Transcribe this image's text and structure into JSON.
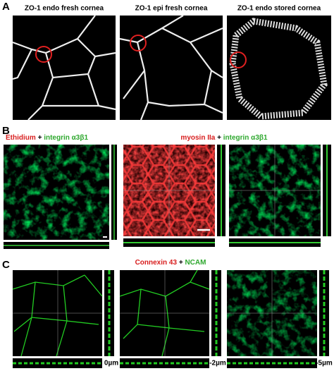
{
  "panel_a": {
    "label": "A",
    "titles": [
      "ZO-1 endo fresh cornea",
      "ZO-1 epi fresh cornea",
      "ZO-1 endo stored cornea"
    ]
  },
  "panel_b": {
    "label": "B",
    "left_caption": [
      "Ethidium",
      "+",
      "integrin α3β1"
    ],
    "right_caption": [
      "myosin IIa",
      "+",
      "integrin α3β1"
    ]
  },
  "panel_c": {
    "label": "C",
    "caption": [
      "Connexin 43",
      "+",
      "NCAM"
    ],
    "depths": [
      "0µm",
      "-2µm",
      "-5µm"
    ]
  }
}
